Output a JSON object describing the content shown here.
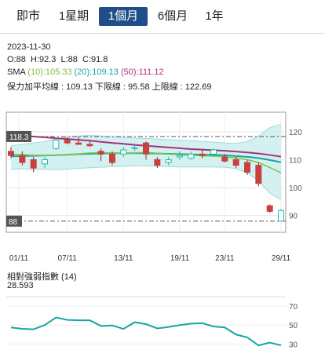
{
  "tabs": [
    {
      "label": "即市",
      "active": false
    },
    {
      "label": "1星期",
      "active": false
    },
    {
      "label": "1個月",
      "active": true
    },
    {
      "label": "6個月",
      "active": false
    },
    {
      "label": "1年",
      "active": false
    }
  ],
  "info": {
    "date": "2023-11-30",
    "ohlc": "O:88  H:92.3  L:88  C:91.8",
    "sma_label": "SMA",
    "sma10": "(10):105.33",
    "sma20": "(20):109.13",
    "sma50": "(50):111.12",
    "bollinger": "保力加平均線 : 109.13 下限線 : 95.58 上限線 : 122.69"
  },
  "rsi": {
    "title": "相對強弱指數 (14)",
    "value": "28.593"
  },
  "colors": {
    "up": "#25b9a7",
    "down": "#c8413f",
    "sma10": "#7cc64a",
    "sma20": "#1aa1a1",
    "sma50": "#a8307a",
    "band": "#cdeeee"
  },
  "chart_data": [
    {
      "type": "candlestick",
      "x_ticks": [
        "01/11",
        "07/11",
        "13/11",
        "19/11",
        "23/11",
        "29/11"
      ],
      "y_ticks": [
        90,
        100,
        110,
        120
      ],
      "ylim": [
        84,
        127
      ],
      "markers": {
        "high_label": "118.3",
        "low_label": "88",
        "high": 118.3,
        "low": 88
      },
      "candles": [
        {
          "o": 113.0,
          "h": 114.5,
          "l": 110.5,
          "c": 111.5
        },
        {
          "o": 111.5,
          "h": 113.0,
          "l": 108.0,
          "c": 109.0
        },
        {
          "o": 110.0,
          "h": 111.0,
          "l": 105.5,
          "c": 107.0
        },
        {
          "o": 108.5,
          "h": 111.0,
          "l": 107.0,
          "c": 110.0
        },
        {
          "o": 114.0,
          "h": 118.0,
          "l": 113.5,
          "c": 117.0
        },
        {
          "o": 117.0,
          "h": 118.0,
          "l": 115.5,
          "c": 116.0
        },
        {
          "o": 116.0,
          "h": 118.3,
          "l": 115.5,
          "c": 115.5
        },
        {
          "o": 115.5,
          "h": 117.0,
          "l": 114.5,
          "c": 115.0
        },
        {
          "o": 113.0,
          "h": 114.0,
          "l": 109.5,
          "c": 112.0
        },
        {
          "o": 112.0,
          "h": 113.0,
          "l": 108.0,
          "c": 109.0
        },
        {
          "o": 112.0,
          "h": 114.5,
          "l": 111.0,
          "c": 113.5
        },
        {
          "o": 114.0,
          "h": 115.0,
          "l": 113.0,
          "c": 114.3
        },
        {
          "o": 116.0,
          "h": 116.5,
          "l": 110.0,
          "c": 112.0
        },
        {
          "o": 110.0,
          "h": 111.0,
          "l": 107.0,
          "c": 108.0
        },
        {
          "o": 109.0,
          "h": 111.0,
          "l": 108.0,
          "c": 110.0
        },
        {
          "o": 111.0,
          "h": 113.0,
          "l": 110.0,
          "c": 111.5
        },
        {
          "o": 110.5,
          "h": 113.0,
          "l": 110.0,
          "c": 112.0
        },
        {
          "o": 112.0,
          "h": 113.5,
          "l": 110.5,
          "c": 111.5
        },
        {
          "o": 112.0,
          "h": 114.0,
          "l": 111.0,
          "c": 113.5
        },
        {
          "o": 111.0,
          "h": 112.0,
          "l": 109.0,
          "c": 109.5
        },
        {
          "o": 110.0,
          "h": 111.0,
          "l": 107.0,
          "c": 108.0
        },
        {
          "o": 109.0,
          "h": 110.0,
          "l": 104.5,
          "c": 105.5
        },
        {
          "o": 108.0,
          "h": 109.0,
          "l": 100.5,
          "c": 101.5
        },
        {
          "o": 93.5,
          "h": 94.0,
          "l": 91.0,
          "c": 91.5
        },
        {
          "o": 88.0,
          "h": 92.3,
          "l": 88.0,
          "c": 91.8
        }
      ],
      "sma10": [
        112.0,
        111.8,
        111.6,
        111.5,
        111.6,
        111.8,
        112.1,
        112.4,
        112.5,
        112.4,
        112.3,
        112.4,
        112.6,
        112.3,
        112.0,
        111.8,
        111.6,
        111.4,
        111.3,
        111.0,
        110.6,
        110.0,
        109.0,
        107.2,
        105.3
      ],
      "sma20": [
        111.2,
        111.3,
        111.4,
        111.5,
        111.6,
        111.8,
        112.0,
        112.1,
        112.2,
        112.3,
        112.3,
        112.3,
        112.3,
        112.2,
        112.1,
        112.0,
        111.9,
        111.8,
        111.7,
        111.6,
        111.3,
        111.0,
        110.6,
        109.9,
        109.1
      ],
      "sma50": [
        118.8,
        118.6,
        118.3,
        118.0,
        117.7,
        117.4,
        117.1,
        116.8,
        116.4,
        116.0,
        115.7,
        115.3,
        115.0,
        114.7,
        114.4,
        114.1,
        113.8,
        113.6,
        113.4,
        113.2,
        112.9,
        112.6,
        112.2,
        111.7,
        111.1
      ],
      "bb_upper": [
        115.0,
        115.5,
        116.0,
        116.5,
        117.5,
        118.0,
        118.5,
        118.7,
        118.5,
        118.2,
        118.0,
        117.8,
        117.6,
        117.4,
        117.2,
        117.0,
        116.8,
        116.6,
        116.3,
        116.0,
        115.8,
        116.5,
        118.5,
        121.5,
        122.7
      ],
      "bb_lower": [
        106.5,
        106.8,
        106.5,
        106.6,
        106.4,
        106.6,
        106.9,
        107.1,
        107.3,
        107.5,
        107.6,
        107.8,
        107.8,
        107.6,
        107.5,
        107.4,
        107.4,
        107.4,
        107.4,
        107.3,
        106.8,
        105.2,
        102.5,
        98.0,
        95.6
      ]
    },
    {
      "type": "line",
      "series_name": "RSI",
      "y_ticks": [
        30,
        50,
        70
      ],
      "ylim": [
        22,
        80
      ],
      "values": [
        47.5,
        46.0,
        45.5,
        50.0,
        58.0,
        55.5,
        55.0,
        55.0,
        49.0,
        49.5,
        46.0,
        53.0,
        51.0,
        46.5,
        48.0,
        50.0,
        51.5,
        52.0,
        48.5,
        47.5,
        40.0,
        37.0,
        28.5,
        31.5,
        28.6
      ]
    }
  ]
}
